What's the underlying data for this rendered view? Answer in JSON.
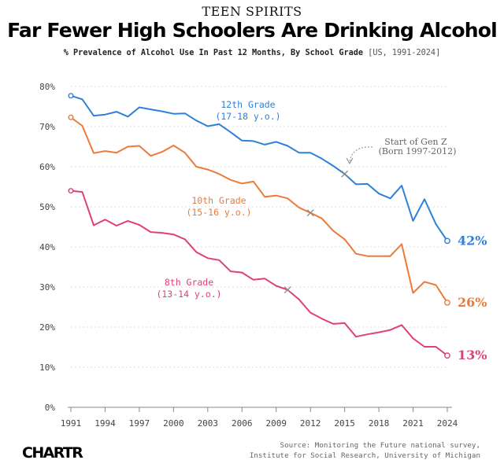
{
  "header": {
    "kicker": "TEEN SPIRITS",
    "title": "Far Fewer High Schoolers Are Drinking Alcohol",
    "subtitle_main": "% Prevalence of Alcohol Use In Past 12 Months, By School Grade",
    "subtitle_note": "[US, 1991-2024]"
  },
  "footer": {
    "logo": "CHARTR",
    "source_line1": "Source: Monitoring the Future national survey,",
    "source_line2": "Institute for Social Research, University of Michigan"
  },
  "annotation": {
    "line1": "Start of Gen Z",
    "line2": "(Born 1997-2012)"
  },
  "colors": {
    "grade12": "#2f80d8",
    "grade10": "#ec7a3a",
    "grade8": "#e0407a",
    "grid": "#dddddd",
    "axis": "#888888",
    "marker": "#888888"
  },
  "chart_data": {
    "type": "line",
    "title": "Far Fewer High Schoolers Are Drinking Alcohol",
    "ylim": [
      0,
      80
    ],
    "yticks": [
      0,
      10,
      20,
      30,
      40,
      50,
      60,
      70,
      80
    ],
    "ytick_labels": [
      "0%",
      "10%",
      "20%",
      "30%",
      "40%",
      "50%",
      "60%",
      "70%",
      "80%"
    ],
    "xlim": [
      1991,
      2024
    ],
    "xticks": [
      1991,
      1994,
      1997,
      2000,
      2003,
      2006,
      2009,
      2012,
      2015,
      2018,
      2021,
      2024
    ],
    "xtick_labels": [
      "1991",
      "1994",
      "1997",
      "2000",
      "2003",
      "2006",
      "2009",
      "2012",
      "2015",
      "2018",
      "2021",
      "2024"
    ],
    "x": [
      1991,
      1992,
      1993,
      1994,
      1995,
      1996,
      1997,
      1998,
      1999,
      2000,
      2001,
      2002,
      2003,
      2004,
      2005,
      2006,
      2007,
      2008,
      2009,
      2010,
      2011,
      2012,
      2013,
      2014,
      2015,
      2016,
      2017,
      2018,
      2019,
      2020,
      2021,
      2022,
      2023,
      2024
    ],
    "series": [
      {
        "key": "grade12",
        "label_line1": "12th Grade",
        "label_line2": "(17-18 y.o.)",
        "end_label": "42%",
        "values": [
          77.7,
          76.8,
          72.7,
          73.0,
          73.7,
          72.5,
          74.8,
          74.3,
          73.8,
          73.2,
          73.3,
          71.5,
          70.1,
          70.6,
          68.6,
          66.5,
          66.4,
          65.5,
          66.2,
          65.2,
          63.5,
          63.5,
          62.0,
          60.2,
          58.2,
          55.6,
          55.7,
          53.3,
          52.1,
          55.3,
          46.5,
          51.9,
          45.7,
          41.5
        ],
        "markers": [
          {
            "x": 2015,
            "y": 58.2
          }
        ]
      },
      {
        "key": "grade10",
        "label_line1": "10th Grade",
        "label_line2": "(15-16 y.o.)",
        "end_label": "26%",
        "values": [
          72.3,
          70.2,
          63.4,
          63.9,
          63.5,
          65.0,
          65.2,
          62.7,
          63.7,
          65.3,
          63.5,
          60.0,
          59.3,
          58.2,
          56.7,
          55.8,
          56.3,
          52.5,
          52.8,
          52.1,
          49.8,
          48.5,
          47.1,
          44.0,
          41.9,
          38.3,
          37.7,
          37.7,
          37.7,
          40.7,
          28.5,
          31.3,
          30.5,
          26.1
        ],
        "markers": [
          {
            "x": 2012,
            "y": 48.5
          }
        ]
      },
      {
        "key": "grade8",
        "label_line1": "8th Grade",
        "label_line2": "(13-14 y.o.)",
        "end_label": "13%",
        "values": [
          54.0,
          53.7,
          45.4,
          46.8,
          45.3,
          46.5,
          45.5,
          43.7,
          43.5,
          43.1,
          41.9,
          38.7,
          37.2,
          36.7,
          33.9,
          33.6,
          31.8,
          32.1,
          30.3,
          29.3,
          26.9,
          23.6,
          22.1,
          20.8,
          21.0,
          17.6,
          18.2,
          18.7,
          19.3,
          20.5,
          17.2,
          15.1,
          15.1,
          12.9
        ],
        "markers": [
          {
            "x": 2010,
            "y": 29.3
          }
        ]
      }
    ],
    "grid": true,
    "legend": "direct labels"
  }
}
